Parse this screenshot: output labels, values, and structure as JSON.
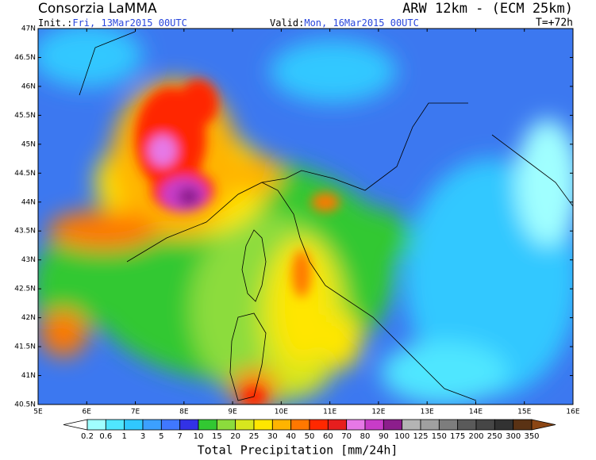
{
  "header": {
    "title": "Consorzia LaMMA",
    "model": "ARW 12km - (ECM 25km)",
    "init_label": "Init.:",
    "init_date": "Fri, 13Mar2015 00UTC",
    "valid_label": "Valid:",
    "valid_date": "Mon, 16Mar2015 00UTC",
    "step": "T=+72h"
  },
  "map": {
    "xlim": [
      5,
      16
    ],
    "ylim": [
      40.5,
      47
    ],
    "lon_ticks": [
      {
        "value": 5,
        "label": "5E"
      },
      {
        "value": 6,
        "label": "6E"
      },
      {
        "value": 7,
        "label": "7E"
      },
      {
        "value": 8,
        "label": "8E"
      },
      {
        "value": 9,
        "label": "9E"
      },
      {
        "value": 10,
        "label": "10E"
      },
      {
        "value": 11,
        "label": "11E"
      },
      {
        "value": 12,
        "label": "12E"
      },
      {
        "value": 13,
        "label": "13E"
      },
      {
        "value": 14,
        "label": "14E"
      },
      {
        "value": 15,
        "label": "15E"
      },
      {
        "value": 16,
        "label": "16E"
      }
    ],
    "lat_ticks": [
      {
        "value": 40.5,
        "label": "40.5N"
      },
      {
        "value": 41,
        "label": "41N"
      },
      {
        "value": 41.5,
        "label": "41.5N"
      },
      {
        "value": 42,
        "label": "42N"
      },
      {
        "value": 42.5,
        "label": "42.5N"
      },
      {
        "value": 43,
        "label": "43N"
      },
      {
        "value": 43.5,
        "label": "43.5N"
      },
      {
        "value": 44,
        "label": "44N"
      },
      {
        "value": 44.5,
        "label": "44.5N"
      },
      {
        "value": 45,
        "label": "45N"
      },
      {
        "value": 45.5,
        "label": "45.5N"
      },
      {
        "value": 46,
        "label": "46N"
      },
      {
        "value": 46.5,
        "label": "46.5N"
      },
      {
        "value": 47,
        "label": "47N"
      }
    ]
  },
  "colorbar": {
    "title": "Total Precipitation [mm/24h]",
    "levels": [
      0.2,
      0.6,
      1,
      3,
      5,
      7,
      10,
      15,
      20,
      25,
      30,
      40,
      50,
      60,
      70,
      80,
      90,
      100,
      125,
      150,
      175,
      200,
      250,
      300,
      350
    ],
    "colors": [
      "#ffffff",
      "#a0ffff",
      "#50e6ff",
      "#30c8ff",
      "#3ca0ff",
      "#4078ff",
      "#3232e6",
      "#32c832",
      "#8cdc3c",
      "#d7e61e",
      "#ffe600",
      "#ffb400",
      "#ff7800",
      "#ff2800",
      "#e61e1e",
      "#e678e6",
      "#c83cc8",
      "#8c1e8c",
      "#b4b4b4",
      "#a0a0a0",
      "#7d7d7d",
      "#5a5a5a",
      "#464646",
      "#323232",
      "#5a3214",
      "#8c4614"
    ]
  }
}
